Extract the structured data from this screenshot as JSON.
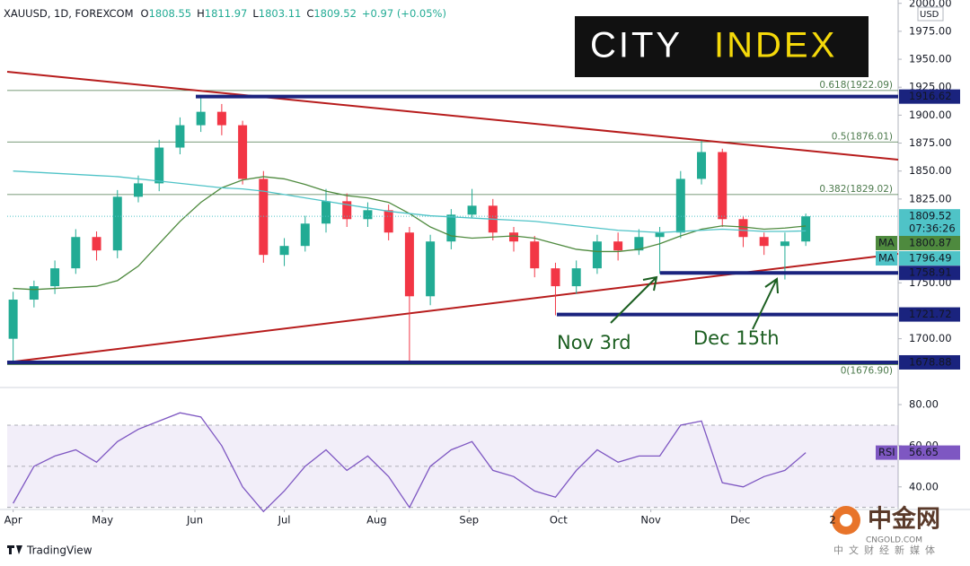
{
  "header": {
    "symbol": "XAUUSD, 1D, FOREXCOM",
    "ohlc": [
      {
        "label": "O",
        "value": 1808.55
      },
      {
        "label": "H",
        "value": 1811.97
      },
      {
        "label": "L",
        "value": 1803.11
      },
      {
        "label": "C",
        "value": 1809.52
      }
    ],
    "change": "+0.97 (+0.05%)"
  },
  "logo": {
    "word1": "CITY",
    "word2": "INDEX"
  },
  "footer": {
    "brand": "TradingView",
    "watermark": "中金网",
    "watermark_site": "CNGOLD.COM",
    "watermark_tagline": "中文财经新媒体"
  },
  "chart_data": [
    {
      "type": "candlestick",
      "currency": "USD",
      "xlim": [
        -2,
        297
      ],
      "xticks": [
        {
          "value": 0,
          "label": "Apr"
        },
        {
          "value": 30,
          "label": "May"
        },
        {
          "value": 61,
          "label": "Jun"
        },
        {
          "value": 91,
          "label": "Jul"
        },
        {
          "value": 122,
          "label": "Aug"
        },
        {
          "value": 153,
          "label": "Sep"
        },
        {
          "value": 183,
          "label": "Oct"
        },
        {
          "value": 214,
          "label": "Nov"
        },
        {
          "value": 244,
          "label": "Dec"
        },
        {
          "value": 275,
          "label": "2"
        }
      ],
      "ylim": [
        1658,
        2003
      ],
      "yticks": [
        {
          "value": 2000,
          "label": "2000.00"
        },
        {
          "value": 1975,
          "label": "1975.00"
        },
        {
          "value": 1950,
          "label": "1950.00"
        },
        {
          "value": 1925,
          "label": "1925.00"
        },
        {
          "value": 1900,
          "label": "1900.00"
        },
        {
          "value": 1875,
          "label": "1875.00"
        },
        {
          "value": 1850,
          "label": "1850.00"
        },
        {
          "value": 1825,
          "label": "1825.00"
        },
        {
          "value": 1750,
          "label": "1750.00"
        },
        {
          "value": 1700,
          "label": "1700.00"
        }
      ],
      "up_color": "#22ab94",
      "down_color": "#f23645",
      "x": [
        0,
        7,
        14,
        21,
        28,
        35,
        42,
        49,
        56,
        63,
        70,
        77,
        84,
        91,
        98,
        105,
        112,
        119,
        126,
        133,
        140,
        147,
        154,
        161,
        168,
        175,
        182,
        189,
        196,
        203,
        210,
        217,
        224,
        231,
        238,
        245,
        252,
        259,
        266
      ],
      "open": [
        1700,
        1735,
        1747,
        1763,
        1791,
        1779,
        1827,
        1839,
        1871,
        1891,
        1903,
        1891,
        1843,
        1775,
        1783,
        1803,
        1823,
        1807,
        1815,
        1795,
        1738,
        1787,
        1811,
        1819,
        1795,
        1787,
        1763,
        1747,
        1763,
        1787,
        1779,
        1791,
        1795,
        1843,
        1867,
        1807,
        1791,
        1783,
        1787
      ],
      "high": [
        1742,
        1752,
        1770,
        1798,
        1796,
        1833,
        1846,
        1878,
        1898,
        1916,
        1910,
        1895,
        1850,
        1790,
        1810,
        1834,
        1830,
        1822,
        1820,
        1800,
        1793,
        1816,
        1834,
        1825,
        1800,
        1792,
        1768,
        1770,
        1793,
        1795,
        1798,
        1800,
        1850,
        1877,
        1870,
        1810,
        1795,
        1795,
        1812
      ],
      "low": [
        1678,
        1728,
        1740,
        1758,
        1770,
        1772,
        1822,
        1832,
        1865,
        1885,
        1882,
        1838,
        1768,
        1765,
        1778,
        1795,
        1800,
        1800,
        1788,
        1680,
        1730,
        1780,
        1808,
        1788,
        1778,
        1755,
        1721,
        1740,
        1758,
        1770,
        1775,
        1758,
        1790,
        1838,
        1800,
        1782,
        1775,
        1753,
        1783
      ],
      "close": [
        1735,
        1747,
        1763,
        1791,
        1779,
        1827,
        1839,
        1871,
        1891,
        1903,
        1891,
        1843,
        1775,
        1783,
        1803,
        1823,
        1807,
        1815,
        1795,
        1738,
        1787,
        1811,
        1819,
        1795,
        1787,
        1763,
        1747,
        1763,
        1787,
        1779,
        1791,
        1795,
        1843,
        1867,
        1807,
        1791,
        1783,
        1787,
        1809.52
      ],
      "series": [
        {
          "name": "MA",
          "color": "#4e8a3e",
          "values": [
            1745,
            1744,
            1745,
            1746,
            1747,
            1752,
            1765,
            1785,
            1805,
            1822,
            1835,
            1842,
            1845,
            1843,
            1838,
            1832,
            1828,
            1826,
            1822,
            1812,
            1800,
            1792,
            1790,
            1791,
            1792,
            1790,
            1785,
            1780,
            1778,
            1778,
            1780,
            1785,
            1792,
            1798,
            1801,
            1800,
            1798,
            1799,
            1800.87
          ]
        },
        {
          "name": "MA",
          "color": "#4fc3c7",
          "values": [
            1850,
            1849,
            1848,
            1847,
            1846,
            1845,
            1843,
            1841,
            1839,
            1837,
            1835,
            1834,
            1832,
            1829,
            1826,
            1823,
            1820,
            1817,
            1814,
            1812,
            1810,
            1809,
            1808,
            1807,
            1806,
            1805,
            1803,
            1801,
            1799,
            1797,
            1796,
            1795,
            1796,
            1797,
            1798,
            1797,
            1796,
            1796,
            1796.49
          ]
        }
      ],
      "last_price": 1809.52,
      "countdown": "07:36:26",
      "levels": [
        1916.62,
        1758.91,
        1721.72,
        1678.88
      ],
      "fib": [
        {
          "value": 1922.09,
          "label": "0.618(1922.09)"
        },
        {
          "value": 1876.01,
          "label": "0.5(1876.01)"
        },
        {
          "value": 1829.02,
          "label": "0.382(1829.02)"
        },
        {
          "value": 1676.9,
          "label": "0(1676.90)"
        }
      ],
      "annotations": [
        "Nov 3rd",
        "Dec 15th"
      ]
    },
    {
      "type": "line",
      "name": "RSI",
      "color": "#7e57c2",
      "ylim": [
        29,
        87
      ],
      "yticks": [
        {
          "value": 80,
          "label": "80.00"
        },
        {
          "value": 60,
          "label": "60.00"
        },
        {
          "value": 40,
          "label": "40.00"
        }
      ],
      "bands": [
        70,
        50,
        30
      ],
      "x": [
        0,
        7,
        14,
        21,
        28,
        35,
        42,
        49,
        56,
        63,
        70,
        77,
        84,
        91,
        98,
        105,
        112,
        119,
        126,
        133,
        140,
        147,
        154,
        161,
        168,
        175,
        182,
        189,
        196,
        203,
        210,
        217,
        224,
        231,
        238,
        245,
        252,
        259,
        266
      ],
      "values": [
        32,
        50,
        55,
        58,
        52,
        62,
        68,
        72,
        76,
        74,
        60,
        40,
        28,
        38,
        50,
        58,
        48,
        55,
        45,
        30,
        50,
        58,
        62,
        48,
        45,
        38,
        35,
        48,
        58,
        52,
        55,
        55,
        70,
        72,
        42,
        40,
        45,
        48,
        56.65
      ]
    }
  ]
}
